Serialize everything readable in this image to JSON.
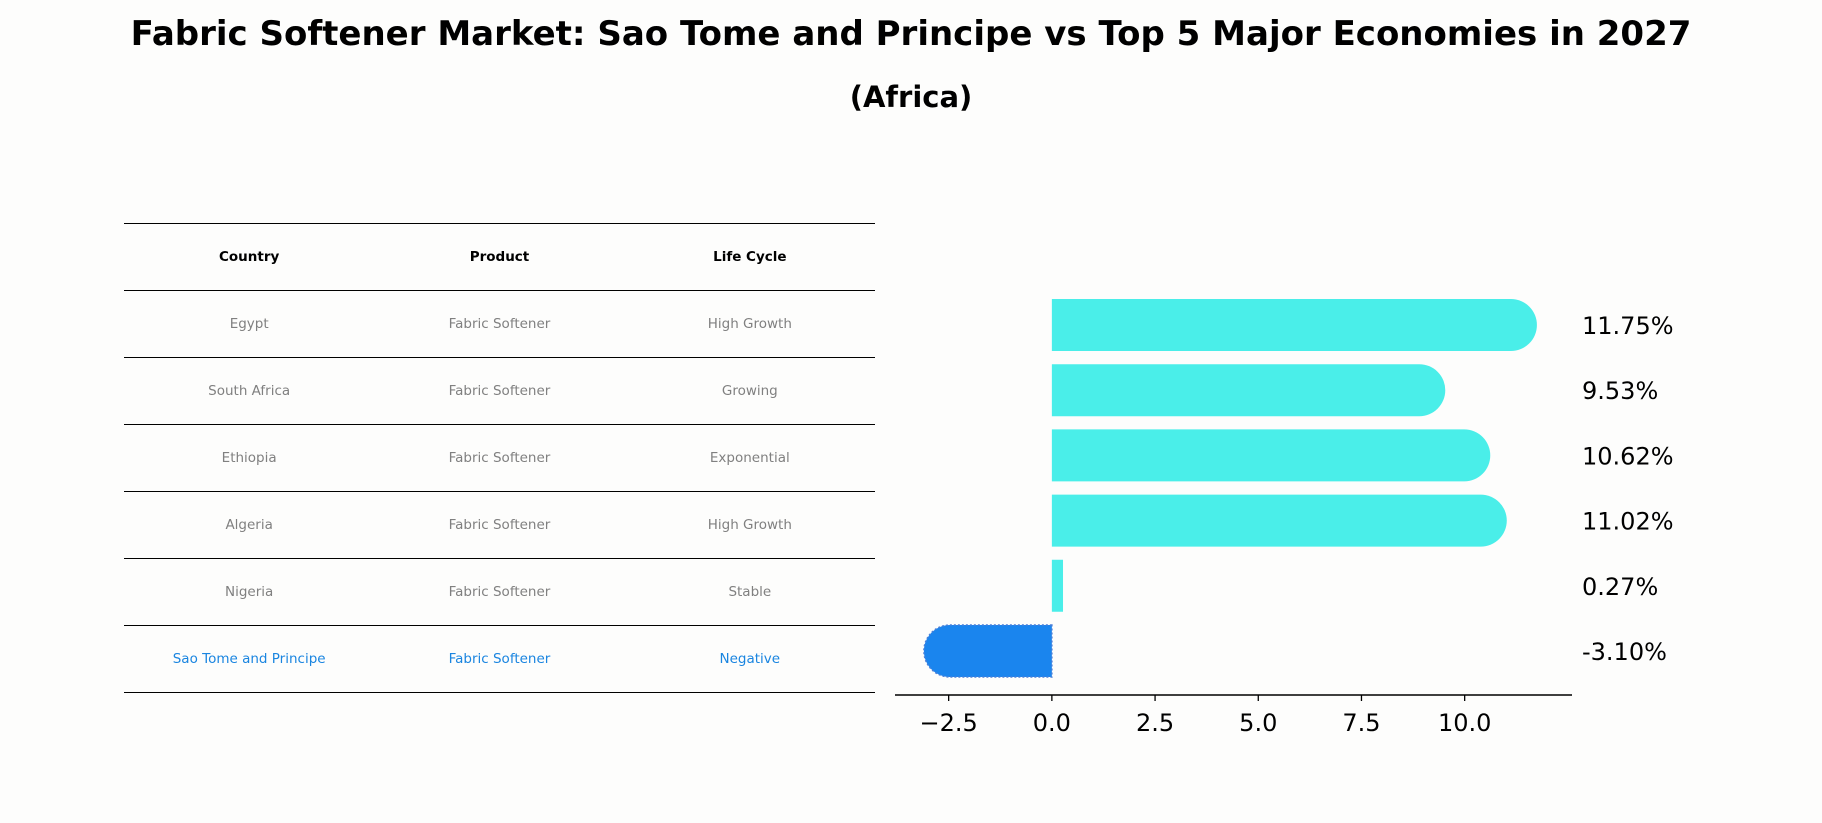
{
  "title": "Fabric Softener Market: Sao Tome and Principe vs Top 5 Major Economies in 2027",
  "subtitle": "(Africa)",
  "table": {
    "headers": [
      "Country",
      "Product",
      "Life Cycle"
    ],
    "rows": [
      {
        "country": "Egypt",
        "product": "Fabric Softener",
        "life_cycle": "High Growth"
      },
      {
        "country": "South Africa",
        "product": "Fabric Softener",
        "life_cycle": "Growing"
      },
      {
        "country": "Ethiopia",
        "product": "Fabric Softener",
        "life_cycle": "Exponential"
      },
      {
        "country": "Algeria",
        "product": "Fabric Softener",
        "life_cycle": "High Growth"
      },
      {
        "country": "Nigeria",
        "product": "Fabric Softener",
        "life_cycle": "Stable"
      },
      {
        "country": "Sao Tome and Principe",
        "product": "Fabric Softener",
        "life_cycle": "Negative"
      }
    ]
  },
  "chart_data": {
    "type": "bar",
    "orientation": "horizontal",
    "categories": [
      "Egypt",
      "South Africa",
      "Ethiopia",
      "Algeria",
      "Nigeria",
      "Sao Tome and Principe"
    ],
    "values": [
      11.75,
      9.53,
      10.62,
      11.02,
      0.27,
      -3.1
    ],
    "value_labels": [
      "11.75%",
      "9.53%",
      "10.62%",
      "11.02%",
      "0.27%",
      "-3.10%"
    ],
    "xlim": [
      -3.8,
      12.6
    ],
    "xticks": [
      -2.5,
      0.0,
      2.5,
      5.0,
      7.5,
      10.0
    ],
    "xtick_labels": [
      "−2.5",
      "0.0",
      "2.5",
      "5.0",
      "7.5",
      "10.0"
    ],
    "highlight_index": 5,
    "colors": {
      "bar": "#4aeee9",
      "highlight": "#1a85ee",
      "axis": "#000000"
    }
  }
}
